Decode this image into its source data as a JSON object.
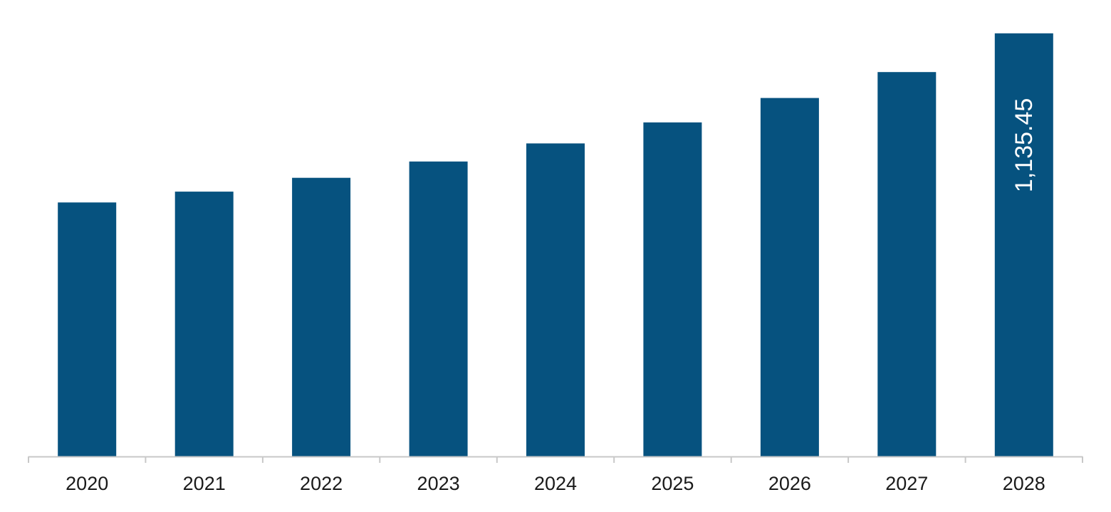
{
  "chart_data": {
    "type": "bar",
    "categories": [
      "2020",
      "2021",
      "2022",
      "2023",
      "2024",
      "2025",
      "2026",
      "2027",
      "2028"
    ],
    "values": [
      681.6,
      710.7,
      747.8,
      791.5,
      840.0,
      896.3,
      962.0,
      1031.4,
      1135.45
    ],
    "data_labels": [
      {
        "category": "2028",
        "text": "1,135.45"
      }
    ],
    "ylim": [
      0,
      1200
    ],
    "grid": false,
    "legend": "none",
    "title": "",
    "xlabel": "",
    "ylabel": "",
    "colors": {
      "bar": "#06527f",
      "axis": "#c8c8c8",
      "tick_text": "#1a1a1a",
      "data_label_text": "#ffffff"
    }
  }
}
